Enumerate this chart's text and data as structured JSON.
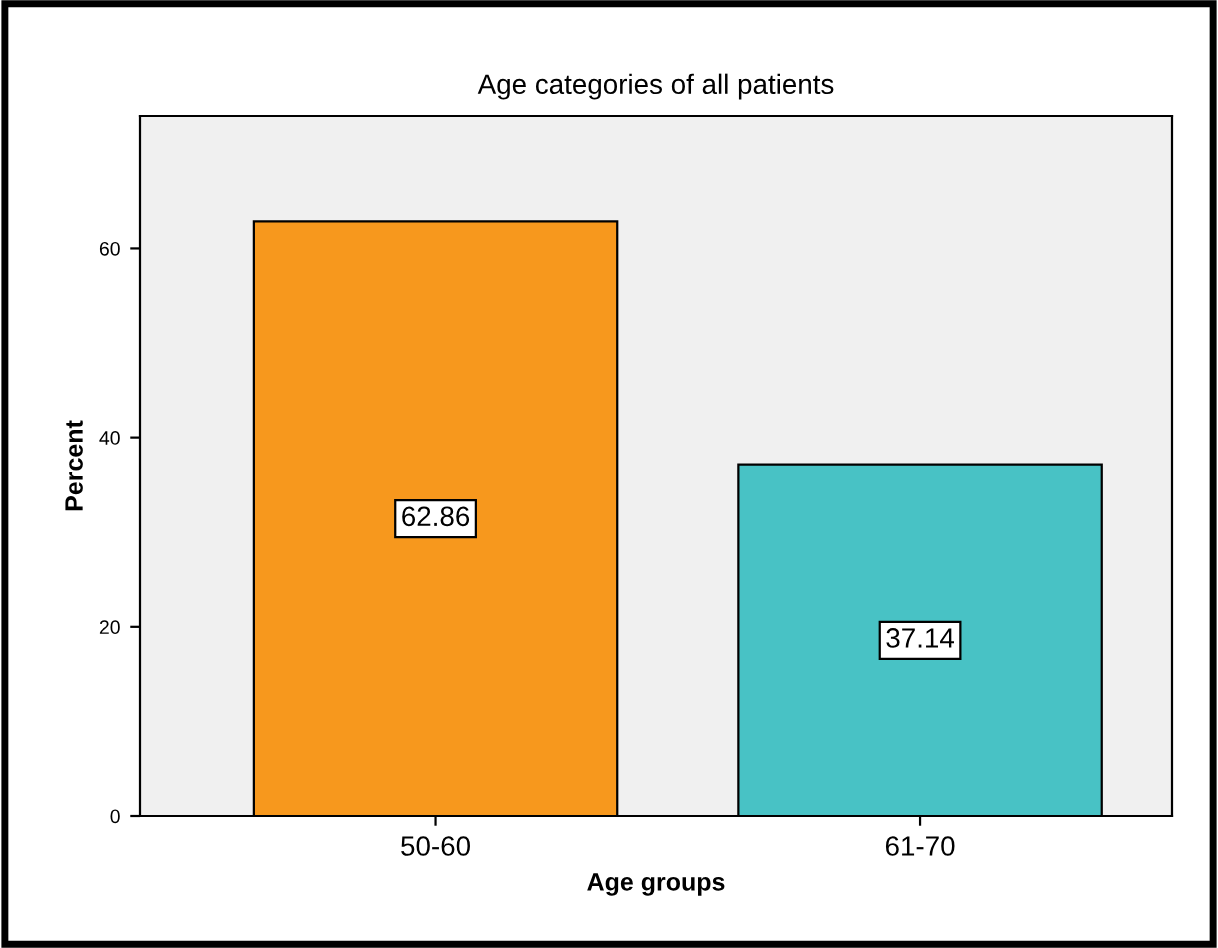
{
  "chart_data": {
    "type": "bar",
    "title": "Age categories of all patients",
    "xlabel": "Age groups",
    "ylabel": "Percent",
    "categories": [
      "50-60",
      "61-70"
    ],
    "values": [
      62.86,
      37.14
    ],
    "colors": [
      "#f7981d",
      "#48c2c5"
    ],
    "ylim": [
      0,
      74
    ],
    "yticks": [
      0,
      20,
      40,
      60
    ],
    "grid": false,
    "legend": false,
    "data_labels": true
  }
}
